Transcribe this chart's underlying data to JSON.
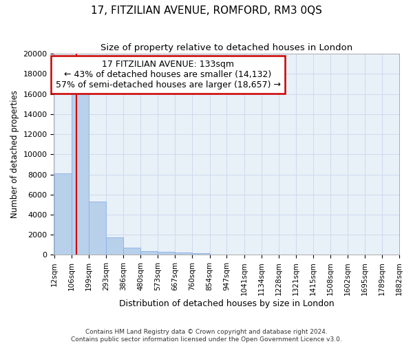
{
  "title": "17, FITZILIAN AVENUE, ROMFORD, RM3 0QS",
  "subtitle": "Size of property relative to detached houses in London",
  "xlabel": "Distribution of detached houses by size in London",
  "ylabel": "Number of detached properties",
  "bin_labels": [
    "12sqm",
    "106sqm",
    "199sqm",
    "293sqm",
    "386sqm",
    "480sqm",
    "573sqm",
    "667sqm",
    "760sqm",
    "854sqm",
    "947sqm",
    "1041sqm",
    "1134sqm",
    "1228sqm",
    "1321sqm",
    "1415sqm",
    "1508sqm",
    "1602sqm",
    "1695sqm",
    "1789sqm",
    "1882sqm"
  ],
  "bin_edges": [
    12,
    106,
    199,
    293,
    386,
    480,
    573,
    667,
    760,
    854,
    947,
    1041,
    1134,
    1228,
    1321,
    1415,
    1508,
    1602,
    1695,
    1789,
    1882
  ],
  "bar_values": [
    8100,
    16700,
    5300,
    1750,
    700,
    380,
    280,
    230,
    200,
    0,
    0,
    0,
    0,
    0,
    0,
    0,
    0,
    0,
    0,
    0
  ],
  "bar_color": "#b8d0ea",
  "bar_edgecolor": "#8aafe8",
  "property_size": 133,
  "property_label": "17 FITZILIAN AVENUE: 133sqm",
  "annotation_line1": "← 43% of detached houses are smaller (14,132)",
  "annotation_line2": "57% of semi-detached houses are larger (18,657) →",
  "vline_color": "#cc0000",
  "annotation_box_edgecolor": "#cc0000",
  "annotation_box_facecolor": "#ffffff",
  "ylim": [
    0,
    20000
  ],
  "yticks": [
    0,
    2000,
    4000,
    6000,
    8000,
    10000,
    12000,
    14000,
    16000,
    18000,
    20000
  ],
  "grid_color": "#c8d8ec",
  "bg_color": "#e8f0f8",
  "footer_line1": "Contains HM Land Registry data © Crown copyright and database right 2024.",
  "footer_line2": "Contains public sector information licensed under the Open Government Licence v3.0."
}
